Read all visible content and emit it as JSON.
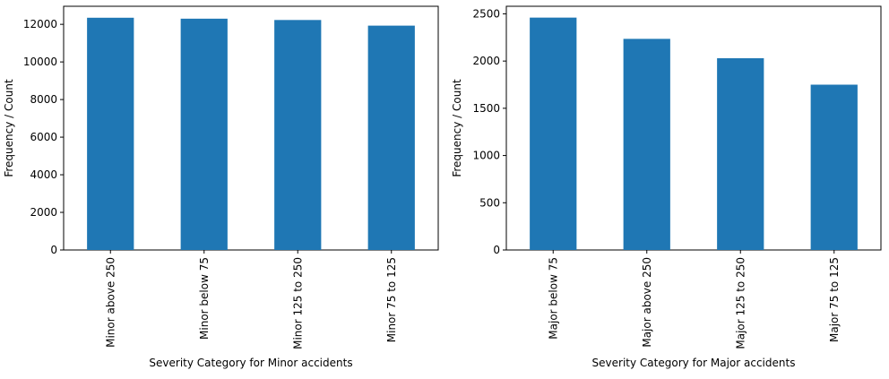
{
  "chart_data": [
    {
      "type": "bar",
      "categories": [
        "Minor above 250",
        "Minor below 75",
        "Minor 125 to 250",
        "Minor 75 to 125"
      ],
      "values": [
        12350,
        12300,
        12230,
        11930
      ],
      "xlabel": "Severity Category for Minor accidents",
      "ylabel": "Frequency / Count",
      "ylim": [
        0,
        12960
      ],
      "yticks": [
        0,
        2000,
        4000,
        6000,
        8000,
        10000,
        12000
      ],
      "bar_color": "#1f77b4",
      "grid": false
    },
    {
      "type": "bar",
      "categories": [
        "Major below 75",
        "Major above 250",
        "Major 125 to 250",
        "Major 75 to 125"
      ],
      "values": [
        2460,
        2235,
        2030,
        1750
      ],
      "xlabel": "Severity Category for Major accidents",
      "ylabel": "Frequency / Count",
      "ylim": [
        0,
        2580
      ],
      "yticks": [
        0,
        500,
        1000,
        1500,
        2000,
        2500
      ],
      "bar_color": "#1f77b4",
      "grid": false
    }
  ]
}
